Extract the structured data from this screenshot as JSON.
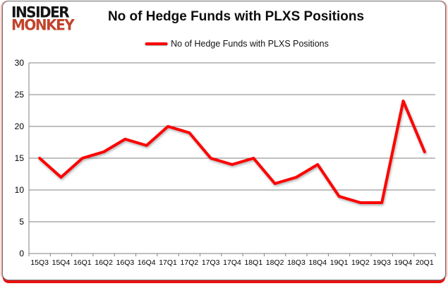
{
  "logo": {
    "line1": "INSIDER",
    "line2": "MONKEY",
    "line1_color": "#141414",
    "line2_color": "#c2432b"
  },
  "header": {
    "title": "No of Hedge Funds with PLXS Positions"
  },
  "legend": {
    "label": "No of Hedge Funds with PLXS Positions",
    "marker_color": "#fe0000"
  },
  "chart_data": {
    "type": "line",
    "title": "No of Hedge Funds with PLXS Positions",
    "categories": [
      "15Q3",
      "15Q4",
      "16Q1",
      "16Q2",
      "16Q3",
      "16Q4",
      "17Q1",
      "17Q2",
      "17Q3",
      "17Q4",
      "18Q1",
      "18Q2",
      "18Q3",
      "18Q4",
      "19Q1",
      "19Q2",
      "19Q3",
      "19Q4",
      "20Q1"
    ],
    "series": [
      {
        "name": "No of Hedge Funds with PLXS Positions",
        "color": "#fe0000",
        "values": [
          15,
          12,
          15,
          16,
          18,
          17,
          20,
          19,
          15,
          14,
          15,
          11,
          12,
          14,
          9,
          8,
          8,
          24,
          16
        ]
      }
    ],
    "xlabel": "",
    "ylabel": "",
    "ylim": [
      0,
      30
    ],
    "yticks": [
      0,
      5,
      10,
      15,
      20,
      25,
      30
    ],
    "grid": true,
    "legend_position": "top",
    "gridline_color": "#808080",
    "axis_color": "#808080",
    "tick_label_color": "#000000",
    "background_color": "#ffffff"
  },
  "frame": {
    "border_color": "#ea1111",
    "side_glow_color": "#f2b7b1",
    "outline_color": "#6e6e6e"
  }
}
